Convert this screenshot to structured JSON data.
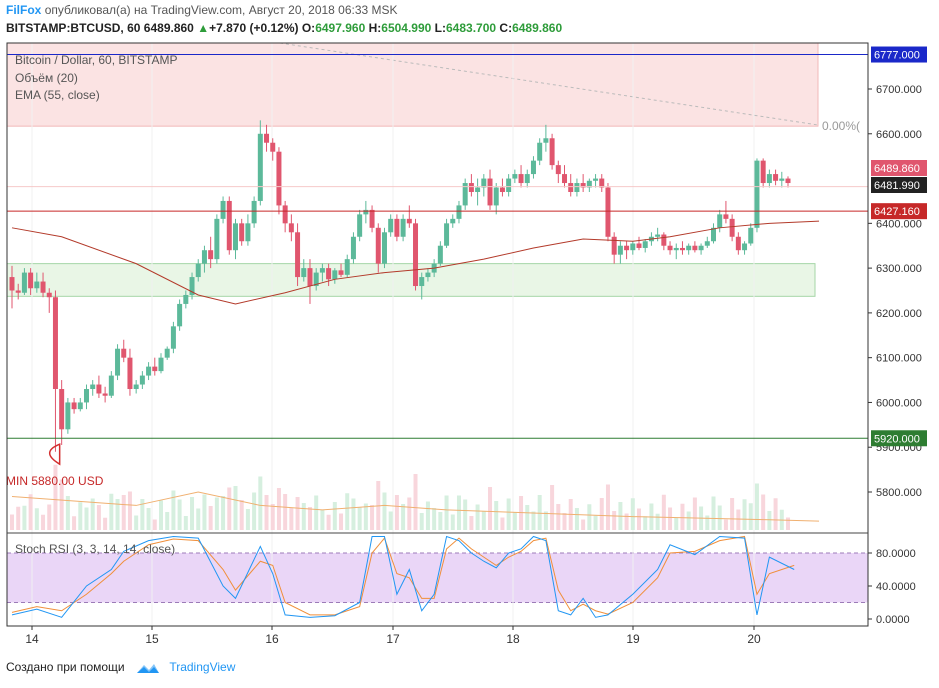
{
  "header": {
    "brand": "FilFox",
    "published": "опубликовал(а) на TradingView.com, Август 20, 2018 06:33 MSK",
    "symbol": "BITSTAMP:BTCUSD, 60",
    "last": "6489.860",
    "change": "+7.870 (+0.12%)",
    "o_label": "O:",
    "o_val": "6497.960",
    "h_label": "H:",
    "h_val": "6504.990",
    "l_label": "L:",
    "l_val": "6483.700",
    "c_label": "C:",
    "c_val": "6489.860"
  },
  "legend": {
    "title": "Bitcoin / Dollar, 60, BITSTAMP",
    "volume": "Объём (20)",
    "ema": "EMA (55, close)",
    "rsi": "Stoch RSI (3, 3, 14, 14, close)"
  },
  "annotations": {
    "min_label": "MIN 5880.00 USD",
    "fib_label": "0.00%("
  },
  "footer": {
    "created": "Создано при помощи",
    "brand": "TradingView"
  },
  "colors": {
    "up": "#5cb99a",
    "down": "#e0566e",
    "ema": "#b33a2a",
    "rsi_k": "#2196f3",
    "rsi_d": "#f08f3a",
    "resistance": "#1a28c9",
    "support": "#2e7d32",
    "redline": "#c62828"
  },
  "chart_data": {
    "type": "candlestick",
    "x_ticks": [
      "14",
      "15",
      "16",
      "17",
      "18",
      "19",
      "20"
    ],
    "y_ticks": [
      "6700.000",
      "6600.000",
      "6400.000",
      "6300.000",
      "6200.000",
      "6100.000",
      "6000.000",
      "5900.000",
      "5800.000"
    ],
    "ylim": [
      5720,
      6800
    ],
    "price_labels": {
      "resistance": "6777.000",
      "last": "6489.860",
      "prev": "6481.990",
      "redline": "6427.160",
      "support": "5920.000"
    },
    "levels": {
      "resistance": 6777,
      "redline": 6427.16,
      "support": 5920,
      "fib_top": 6617,
      "fib_bottom": 6800,
      "zone_top": 6310,
      "zone_bottom": 6237,
      "min": 5880
    },
    "rsi_ticks": [
      "80.0000",
      "40.0000",
      "0.0000"
    ],
    "rsi_levels": [
      80,
      20
    ],
    "ohlc": [
      [
        6280,
        6305,
        6210,
        6250
      ],
      [
        6250,
        6265,
        6230,
        6245
      ],
      [
        6245,
        6300,
        6240,
        6290
      ],
      [
        6290,
        6300,
        6240,
        6255
      ],
      [
        6255,
        6290,
        6245,
        6270
      ],
      [
        6270,
        6290,
        6235,
        6245
      ],
      [
        6245,
        6255,
        6200,
        6235
      ],
      [
        6235,
        6250,
        5890,
        6030
      ],
      [
        6030,
        6050,
        5905,
        5940
      ],
      [
        5940,
        6010,
        5930,
        6000
      ],
      [
        6000,
        6010,
        5975,
        5985
      ],
      [
        5985,
        6010,
        5980,
        6000
      ],
      [
        6000,
        6040,
        5985,
        6030
      ],
      [
        6030,
        6050,
        6015,
        6040
      ],
      [
        6040,
        6060,
        6010,
        6020
      ],
      [
        6020,
        6035,
        6000,
        6015
      ],
      [
        6015,
        6070,
        6010,
        6060
      ],
      [
        6060,
        6130,
        6050,
        6120
      ],
      [
        6120,
        6140,
        6090,
        6100
      ],
      [
        6100,
        6120,
        6015,
        6030
      ],
      [
        6030,
        6050,
        6020,
        6040
      ],
      [
        6040,
        6070,
        6030,
        6060
      ],
      [
        6060,
        6090,
        6050,
        6080
      ],
      [
        6080,
        6100,
        6060,
        6070
      ],
      [
        6070,
        6110,
        6065,
        6100
      ],
      [
        6100,
        6125,
        6095,
        6120
      ],
      [
        6120,
        6180,
        6110,
        6170
      ],
      [
        6170,
        6230,
        6160,
        6220
      ],
      [
        6220,
        6250,
        6210,
        6240
      ],
      [
        6240,
        6290,
        6230,
        6280
      ],
      [
        6280,
        6320,
        6270,
        6310
      ],
      [
        6310,
        6350,
        6290,
        6340
      ],
      [
        6340,
        6370,
        6300,
        6320
      ],
      [
        6320,
        6420,
        6310,
        6410
      ],
      [
        6410,
        6460,
        6400,
        6450
      ],
      [
        6450,
        6460,
        6330,
        6340
      ],
      [
        6340,
        6410,
        6320,
        6400
      ],
      [
        6400,
        6410,
        6350,
        6360
      ],
      [
        6360,
        6420,
        6350,
        6400
      ],
      [
        6400,
        6460,
        6390,
        6450
      ],
      [
        6450,
        6630,
        6440,
        6600
      ],
      [
        6600,
        6620,
        6560,
        6580
      ],
      [
        6580,
        6590,
        6540,
        6560
      ],
      [
        6560,
        6570,
        6420,
        6440
      ],
      [
        6440,
        6450,
        6380,
        6400
      ],
      [
        6400,
        6420,
        6360,
        6380
      ],
      [
        6380,
        6400,
        6260,
        6280
      ],
      [
        6280,
        6320,
        6270,
        6300
      ],
      [
        6300,
        6320,
        6220,
        6260
      ],
      [
        6260,
        6300,
        6250,
        6290
      ],
      [
        6290,
        6310,
        6270,
        6300
      ],
      [
        6300,
        6310,
        6260,
        6275
      ],
      [
        6275,
        6300,
        6265,
        6295
      ],
      [
        6295,
        6310,
        6280,
        6285
      ],
      [
        6285,
        6330,
        6280,
        6320
      ],
      [
        6320,
        6380,
        6310,
        6370
      ],
      [
        6370,
        6430,
        6360,
        6420
      ],
      [
        6420,
        6450,
        6400,
        6430
      ],
      [
        6430,
        6440,
        6380,
        6390
      ],
      [
        6390,
        6400,
        6290,
        6310
      ],
      [
        6310,
        6390,
        6300,
        6380
      ],
      [
        6380,
        6420,
        6370,
        6410
      ],
      [
        6410,
        6420,
        6360,
        6370
      ],
      [
        6370,
        6420,
        6360,
        6410
      ],
      [
        6410,
        6440,
        6390,
        6400
      ],
      [
        6400,
        6410,
        6250,
        6260
      ],
      [
        6260,
        6290,
        6230,
        6280
      ],
      [
        6280,
        6300,
        6270,
        6290
      ],
      [
        6290,
        6320,
        6280,
        6310
      ],
      [
        6310,
        6360,
        6305,
        6350
      ],
      [
        6350,
        6410,
        6345,
        6400
      ],
      [
        6400,
        6420,
        6390,
        6410
      ],
      [
        6410,
        6450,
        6400,
        6440
      ],
      [
        6440,
        6500,
        6430,
        6490
      ],
      [
        6490,
        6510,
        6460,
        6470
      ],
      [
        6470,
        6500,
        6440,
        6480
      ],
      [
        6480,
        6510,
        6460,
        6500
      ],
      [
        6500,
        6520,
        6430,
        6440
      ],
      [
        6440,
        6490,
        6420,
        6480
      ],
      [
        6480,
        6500,
        6460,
        6470
      ],
      [
        6470,
        6510,
        6460,
        6500
      ],
      [
        6500,
        6520,
        6490,
        6510
      ],
      [
        6510,
        6530,
        6480,
        6490
      ],
      [
        6490,
        6520,
        6480,
        6510
      ],
      [
        6510,
        6550,
        6500,
        6540
      ],
      [
        6540,
        6590,
        6530,
        6580
      ],
      [
        6580,
        6620,
        6560,
        6590
      ],
      [
        6590,
        6600,
        6520,
        6530
      ],
      [
        6530,
        6540,
        6490,
        6510
      ],
      [
        6510,
        6530,
        6480,
        6490
      ],
      [
        6490,
        6510,
        6460,
        6470
      ],
      [
        6470,
        6500,
        6460,
        6490
      ],
      [
        6490,
        6510,
        6470,
        6480
      ],
      [
        6480,
        6500,
        6470,
        6495
      ],
      [
        6495,
        6510,
        6480,
        6500
      ],
      [
        6500,
        6510,
        6470,
        6480
      ],
      [
        6480,
        6490,
        6360,
        6370
      ],
      [
        6370,
        6380,
        6310,
        6330
      ],
      [
        6330,
        6360,
        6310,
        6350
      ],
      [
        6350,
        6360,
        6320,
        6340
      ],
      [
        6340,
        6360,
        6330,
        6355
      ],
      [
        6355,
        6370,
        6340,
        6345
      ],
      [
        6345,
        6365,
        6335,
        6360
      ],
      [
        6360,
        6380,
        6350,
        6370
      ],
      [
        6370,
        6390,
        6360,
        6375
      ],
      [
        6375,
        6380,
        6340,
        6350
      ],
      [
        6350,
        6360,
        6330,
        6340
      ],
      [
        6340,
        6355,
        6320,
        6345
      ],
      [
        6345,
        6360,
        6330,
        6340
      ],
      [
        6340,
        6355,
        6330,
        6350
      ],
      [
        6350,
        6360,
        6335,
        6340
      ],
      [
        6340,
        6355,
        6330,
        6350
      ],
      [
        6350,
        6370,
        6345,
        6360
      ],
      [
        6360,
        6400,
        6355,
        6390
      ],
      [
        6390,
        6430,
        6380,
        6420
      ],
      [
        6420,
        6450,
        6400,
        6410
      ],
      [
        6410,
        6420,
        6360,
        6370
      ],
      [
        6370,
        6380,
        6330,
        6340
      ],
      [
        6340,
        6360,
        6330,
        6355
      ],
      [
        6355,
        6400,
        6350,
        6390
      ],
      [
        6390,
        6545,
        6380,
        6540
      ],
      [
        6540,
        6545,
        6480,
        6490
      ],
      [
        6490,
        6520,
        6480,
        6510
      ],
      [
        6510,
        6520,
        6485,
        6495
      ],
      [
        6495,
        6515,
        6480,
        6500
      ],
      [
        6500,
        6505,
        6480,
        6490
      ]
    ],
    "ema": [
      [
        0,
        6390
      ],
      [
        8,
        6370
      ],
      [
        20,
        6310
      ],
      [
        30,
        6240
      ],
      [
        36,
        6220
      ],
      [
        44,
        6245
      ],
      [
        52,
        6275
      ],
      [
        60,
        6290
      ],
      [
        68,
        6300
      ],
      [
        76,
        6320
      ],
      [
        84,
        6345
      ],
      [
        92,
        6365
      ],
      [
        100,
        6360
      ],
      [
        106,
        6370
      ],
      [
        114,
        6390
      ],
      [
        122,
        6400
      ],
      [
        130,
        6405
      ]
    ],
    "volume_avg": [
      [
        0,
        5790
      ],
      [
        10,
        5780
      ],
      [
        20,
        5770
      ],
      [
        30,
        5800
      ],
      [
        40,
        5770
      ],
      [
        50,
        5760
      ],
      [
        60,
        5770
      ],
      [
        70,
        5760
      ],
      [
        80,
        5755
      ],
      [
        90,
        5750
      ],
      [
        100,
        5745
      ],
      [
        110,
        5742
      ],
      [
        122,
        5738
      ],
      [
        130,
        5735
      ]
    ],
    "stoch_rsi_k": [
      [
        0,
        5
      ],
      [
        4,
        12
      ],
      [
        8,
        2
      ],
      [
        12,
        40
      ],
      [
        16,
        60
      ],
      [
        18,
        82
      ],
      [
        22,
        95
      ],
      [
        26,
        100
      ],
      [
        30,
        98
      ],
      [
        34,
        40
      ],
      [
        36,
        25
      ],
      [
        40,
        88
      ],
      [
        42,
        55
      ],
      [
        44,
        5
      ],
      [
        48,
        2
      ],
      [
        52,
        4
      ],
      [
        56,
        20
      ],
      [
        58,
        100
      ],
      [
        60,
        100
      ],
      [
        62,
        30
      ],
      [
        64,
        60
      ],
      [
        66,
        10
      ],
      [
        68,
        30
      ],
      [
        70,
        100
      ],
      [
        72,
        95
      ],
      [
        74,
        80
      ],
      [
        76,
        70
      ],
      [
        78,
        62
      ],
      [
        80,
        80
      ],
      [
        82,
        85
      ],
      [
        84,
        100
      ],
      [
        86,
        95
      ],
      [
        88,
        10
      ],
      [
        90,
        5
      ],
      [
        92,
        25
      ],
      [
        94,
        2
      ],
      [
        96,
        5
      ],
      [
        100,
        30
      ],
      [
        104,
        60
      ],
      [
        106,
        90
      ],
      [
        110,
        78
      ],
      [
        114,
        100
      ],
      [
        118,
        98
      ],
      [
        120,
        5
      ],
      [
        122,
        75
      ],
      [
        126,
        60
      ]
    ],
    "stoch_rsi_d": [
      [
        0,
        8
      ],
      [
        4,
        15
      ],
      [
        8,
        10
      ],
      [
        12,
        30
      ],
      [
        16,
        55
      ],
      [
        18,
        70
      ],
      [
        22,
        90
      ],
      [
        26,
        97
      ],
      [
        30,
        95
      ],
      [
        34,
        60
      ],
      [
        36,
        35
      ],
      [
        40,
        70
      ],
      [
        42,
        65
      ],
      [
        44,
        20
      ],
      [
        48,
        5
      ],
      [
        52,
        5
      ],
      [
        56,
        15
      ],
      [
        58,
        80
      ],
      [
        60,
        98
      ],
      [
        62,
        55
      ],
      [
        64,
        50
      ],
      [
        66,
        25
      ],
      [
        68,
        25
      ],
      [
        70,
        85
      ],
      [
        72,
        98
      ],
      [
        74,
        85
      ],
      [
        76,
        75
      ],
      [
        78,
        65
      ],
      [
        80,
        75
      ],
      [
        82,
        82
      ],
      [
        84,
        95
      ],
      [
        86,
        98
      ],
      [
        88,
        35
      ],
      [
        90,
        10
      ],
      [
        92,
        18
      ],
      [
        94,
        10
      ],
      [
        96,
        6
      ],
      [
        100,
        20
      ],
      [
        104,
        50
      ],
      [
        106,
        80
      ],
      [
        110,
        82
      ],
      [
        114,
        95
      ],
      [
        118,
        100
      ],
      [
        120,
        30
      ],
      [
        122,
        55
      ],
      [
        126,
        65
      ]
    ]
  }
}
